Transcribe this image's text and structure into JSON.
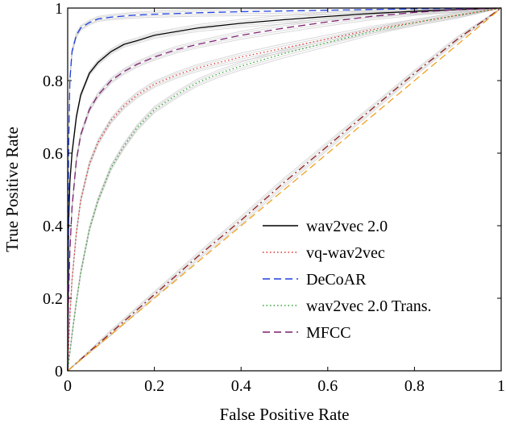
{
  "chart_data": {
    "type": "line",
    "xlabel": "False Positive Rate",
    "ylabel": "True Positive Rate",
    "xlim": [
      0,
      1
    ],
    "ylim": [
      0,
      1
    ],
    "x_ticks": [
      0,
      0.2,
      0.4,
      0.6,
      0.8,
      1
    ],
    "y_ticks": [
      0,
      0.2,
      0.4,
      0.6,
      0.8,
      1
    ],
    "x_tick_labels": [
      "0",
      "0.2",
      "0.4",
      "0.6",
      "0.8",
      "1"
    ],
    "y_tick_labels": [
      "0",
      "0.2",
      "0.4",
      "0.6",
      "0.8",
      "1"
    ],
    "grid": false,
    "legend_position": "lower-right",
    "series": [
      {
        "name": "wav2vec 2.0",
        "color": "#000000",
        "dash": "solid",
        "x": [
          0,
          0.002,
          0.005,
          0.01,
          0.02,
          0.03,
          0.05,
          0.07,
          0.1,
          0.13,
          0.16,
          0.2,
          0.25,
          0.3,
          0.4,
          0.5,
          0.6,
          0.7,
          0.8,
          0.9,
          1
        ],
        "y": [
          0,
          0.4,
          0.52,
          0.6,
          0.7,
          0.76,
          0.82,
          0.85,
          0.88,
          0.9,
          0.91,
          0.925,
          0.935,
          0.945,
          0.958,
          0.968,
          0.977,
          0.985,
          0.991,
          0.996,
          1
        ]
      },
      {
        "name": "vq-wav2vec",
        "color": "#e0302f",
        "dash": "dotted",
        "x": [
          0,
          0.005,
          0.01,
          0.02,
          0.03,
          0.05,
          0.07,
          0.1,
          0.13,
          0.16,
          0.2,
          0.25,
          0.3,
          0.4,
          0.5,
          0.6,
          0.7,
          0.8,
          0.9,
          1
        ],
        "y": [
          0,
          0.15,
          0.25,
          0.38,
          0.47,
          0.57,
          0.63,
          0.69,
          0.73,
          0.76,
          0.79,
          0.815,
          0.835,
          0.865,
          0.89,
          0.915,
          0.94,
          0.96,
          0.98,
          1
        ]
      },
      {
        "name": "DeCoAR",
        "color": "#1f3fe0",
        "dash": "dashed",
        "x": [
          0,
          0.002,
          0.005,
          0.01,
          0.02,
          0.03,
          0.05,
          0.07,
          0.1,
          0.15,
          0.2,
          0.3,
          0.4,
          0.5,
          0.6,
          0.7,
          0.8,
          0.9,
          1
        ],
        "y": [
          0,
          0.6,
          0.8,
          0.88,
          0.925,
          0.945,
          0.96,
          0.97,
          0.975,
          0.98,
          0.983,
          0.987,
          0.99,
          0.992,
          0.994,
          0.996,
          0.998,
          0.999,
          1
        ]
      },
      {
        "name": "wav2vec 2.0 Trans.",
        "color": "#2ea02e",
        "dash": "dotted",
        "x": [
          0,
          0.01,
          0.02,
          0.03,
          0.05,
          0.07,
          0.1,
          0.13,
          0.16,
          0.2,
          0.25,
          0.3,
          0.35,
          0.4,
          0.5,
          0.6,
          0.7,
          0.8,
          0.9,
          1
        ],
        "y": [
          0,
          0.1,
          0.19,
          0.27,
          0.39,
          0.47,
          0.56,
          0.62,
          0.67,
          0.72,
          0.76,
          0.795,
          0.82,
          0.84,
          0.875,
          0.905,
          0.935,
          0.96,
          0.98,
          1
        ]
      },
      {
        "name": "MFCC",
        "color": "#7a1f6e",
        "dash": "dashed",
        "x": [
          0,
          0.002,
          0.005,
          0.01,
          0.02,
          0.03,
          0.05,
          0.07,
          0.1,
          0.13,
          0.16,
          0.2,
          0.25,
          0.3,
          0.4,
          0.5,
          0.6,
          0.7,
          0.8,
          0.9,
          1
        ],
        "y": [
          0,
          0.2,
          0.33,
          0.45,
          0.58,
          0.65,
          0.72,
          0.76,
          0.8,
          0.825,
          0.845,
          0.865,
          0.885,
          0.9,
          0.925,
          0.945,
          0.962,
          0.977,
          0.988,
          0.996,
          1
        ]
      },
      {
        "name": "random",
        "color": "#8b1a1a",
        "dash": "dashdot",
        "legend": false,
        "x": [
          0,
          0.1,
          0.2,
          0.3,
          0.4,
          0.5,
          0.6,
          0.7,
          0.8,
          0.9,
          1
        ],
        "y": [
          0,
          0.105,
          0.21,
          0.315,
          0.415,
          0.52,
          0.62,
          0.72,
          0.82,
          0.915,
          1
        ]
      },
      {
        "name": "diagonal",
        "color": "#f0a020",
        "dash": "dashed",
        "legend": false,
        "x": [
          0,
          1
        ],
        "y": [
          0,
          1
        ]
      }
    ]
  },
  "legend": {
    "items": [
      {
        "label": "wav2vec 2.0"
      },
      {
        "label": "vq-wav2vec"
      },
      {
        "label": "DeCoAR"
      },
      {
        "label": "wav2vec 2.0 Trans."
      },
      {
        "label": "MFCC"
      }
    ]
  }
}
